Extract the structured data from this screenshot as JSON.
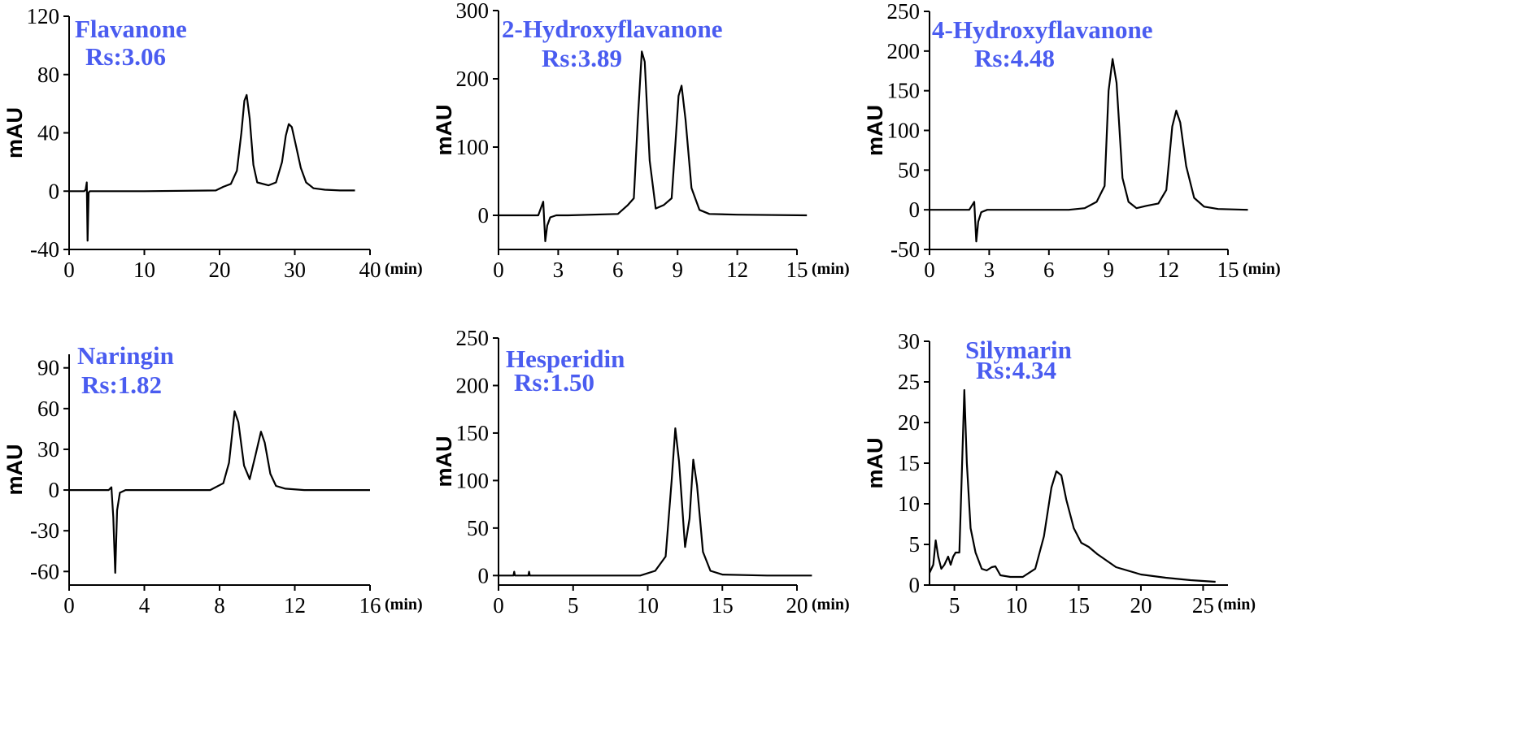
{
  "colors": {
    "annotation": "#4a5cf0",
    "trace": "#000000",
    "axis": "#000000"
  },
  "chart_data": [
    {
      "type": "line",
      "ylabel": "mAU",
      "x_unit": "(min)",
      "annotation": {
        "name": "Flavanone",
        "rs": "Rs:3.06"
      },
      "xlim": [
        0,
        40
      ],
      "ylim": [
        -40,
        120
      ],
      "xticks": [
        0,
        10,
        20,
        30,
        40
      ],
      "yticks": [
        -40,
        0,
        40,
        80,
        120
      ],
      "x": [
        0,
        2.0,
        2.2,
        2.35,
        2.45,
        2.6,
        2.75,
        3.0,
        10,
        19.5,
        20.5,
        21.5,
        22.3,
        22.9,
        23.3,
        23.6,
        24.0,
        24.5,
        25.0,
        26.5,
        27.5,
        28.3,
        28.8,
        29.2,
        29.6,
        30.2,
        30.8,
        31.5,
        32.5,
        34,
        36,
        38
      ],
      "y": [
        0,
        0,
        1,
        6,
        -34,
        -1,
        0,
        0,
        0,
        0.5,
        3,
        5,
        14,
        40,
        62,
        66,
        50,
        18,
        6,
        4,
        6,
        20,
        38,
        46,
        44,
        30,
        16,
        6,
        2,
        1,
        0.5,
        0.5
      ]
    },
    {
      "type": "line",
      "ylabel": "mAU",
      "x_unit": "(min)",
      "annotation": {
        "name": "2-Hydroxyflavanone",
        "rs": "Rs:3.89"
      },
      "xlim": [
        0,
        15
      ],
      "ylim": [
        -50,
        300
      ],
      "xticks": [
        0,
        3,
        6,
        9,
        12,
        15
      ],
      "yticks": [
        0,
        100,
        200,
        300
      ],
      "x": [
        0,
        2.0,
        2.25,
        2.35,
        2.45,
        2.6,
        2.9,
        3.5,
        6.0,
        6.5,
        6.8,
        7.0,
        7.2,
        7.35,
        7.6,
        7.9,
        8.3,
        8.7,
        8.9,
        9.05,
        9.2,
        9.4,
        9.7,
        10.1,
        10.6,
        12,
        15.5
      ],
      "y": [
        0,
        0,
        20,
        -38,
        -15,
        -3,
        0,
        0,
        2,
        15,
        25,
        140,
        240,
        225,
        80,
        10,
        15,
        25,
        110,
        175,
        190,
        140,
        40,
        8,
        2,
        1,
        0
      ]
    },
    {
      "type": "line",
      "ylabel": "mAU",
      "x_unit": "(min)",
      "annotation": {
        "name": "4-Hydroxyflavanone",
        "rs": "Rs:4.48"
      },
      "xlim": [
        0,
        15
      ],
      "ylim": [
        -50,
        250
      ],
      "xticks": [
        0,
        3,
        6,
        9,
        12,
        15
      ],
      "yticks": [
        -50,
        0,
        50,
        100,
        150,
        200,
        250
      ],
      "x": [
        0,
        2.0,
        2.25,
        2.35,
        2.45,
        2.6,
        2.9,
        3.5,
        7.0,
        7.8,
        8.4,
        8.8,
        9.0,
        9.2,
        9.4,
        9.7,
        10.0,
        10.4,
        10.9,
        11.5,
        11.9,
        12.2,
        12.4,
        12.6,
        12.9,
        13.3,
        13.8,
        14.5,
        16
      ],
      "y": [
        0,
        0,
        10,
        -40,
        -15,
        -3,
        0,
        0,
        0,
        2,
        10,
        30,
        150,
        190,
        160,
        40,
        10,
        2,
        5,
        8,
        25,
        105,
        125,
        110,
        55,
        15,
        4,
        1,
        0
      ]
    },
    {
      "type": "line",
      "ylabel": "mAU",
      "x_unit": "(min)",
      "annotation": {
        "name": "Naringin",
        "rs": "Rs:1.82"
      },
      "xlim": [
        0,
        16
      ],
      "ylim": [
        -70,
        100
      ],
      "xticks": [
        0,
        4,
        8,
        12,
        16
      ],
      "yticks": [
        -60,
        -30,
        0,
        30,
        60,
        90
      ],
      "x": [
        0,
        2.1,
        2.25,
        2.35,
        2.45,
        2.55,
        2.7,
        3.0,
        7.5,
        8.2,
        8.5,
        8.8,
        9.0,
        9.3,
        9.6,
        9.9,
        10.2,
        10.4,
        10.7,
        11.0,
        11.5,
        12.5,
        16
      ],
      "y": [
        0,
        0,
        2,
        -20,
        -61,
        -15,
        -2,
        0,
        0,
        5,
        20,
        58,
        50,
        18,
        8,
        25,
        43,
        35,
        12,
        3,
        1,
        0,
        0
      ]
    },
    {
      "type": "line",
      "ylabel": "mAU",
      "x_unit": "(min)",
      "annotation": {
        "name": "Hesperidin",
        "rs": "Rs:1.50"
      },
      "xlim": [
        0,
        20
      ],
      "ylim": [
        -10,
        250
      ],
      "xticks": [
        0,
        5,
        10,
        15,
        20
      ],
      "yticks": [
        0,
        50,
        100,
        150,
        200,
        250
      ],
      "x": [
        0,
        1.0,
        1.05,
        1.1,
        2.0,
        2.05,
        2.1,
        2.5,
        9.5,
        10.5,
        11.2,
        11.6,
        11.85,
        12.1,
        12.5,
        12.8,
        13.05,
        13.3,
        13.7,
        14.2,
        15,
        18,
        21
      ],
      "y": [
        0,
        0,
        4,
        0,
        0,
        4,
        0,
        0,
        0,
        5,
        20,
        100,
        155,
        120,
        30,
        60,
        122,
        95,
        25,
        5,
        1,
        0,
        0
      ]
    },
    {
      "type": "line",
      "ylabel": "mAU",
      "x_unit": "(min)",
      "annotation": {
        "name": "Silymarin",
        "rs": "Rs:4.34"
      },
      "xlim": [
        3,
        27
      ],
      "ylim": [
        0,
        30
      ],
      "xticks": [
        5,
        10,
        15,
        20,
        25
      ],
      "yticks": [
        0,
        5,
        10,
        15,
        20,
        25,
        30
      ],
      "x": [
        3.0,
        3.3,
        3.5,
        3.7,
        3.95,
        4.2,
        4.5,
        4.7,
        4.9,
        5.1,
        5.4,
        5.6,
        5.8,
        6.0,
        6.3,
        6.7,
        7.2,
        7.6,
        8.0,
        8.3,
        8.7,
        9.5,
        10.5,
        11.5,
        12.2,
        12.8,
        13.2,
        13.6,
        14.0,
        14.6,
        15.2,
        15.8,
        16.5,
        18,
        20,
        22,
        24,
        26
      ],
      "y": [
        1.5,
        2.5,
        5.5,
        3.5,
        2.0,
        2.5,
        3.5,
        2.5,
        3.5,
        4.0,
        4.0,
        14.0,
        24.0,
        15.0,
        7.0,
        4.0,
        2.0,
        1.8,
        2.2,
        2.3,
        1.2,
        1.0,
        1.0,
        2.0,
        6.0,
        12.0,
        14.0,
        13.5,
        10.5,
        7.0,
        5.2,
        4.7,
        3.8,
        2.2,
        1.3,
        0.9,
        0.6,
        0.4
      ]
    }
  ]
}
